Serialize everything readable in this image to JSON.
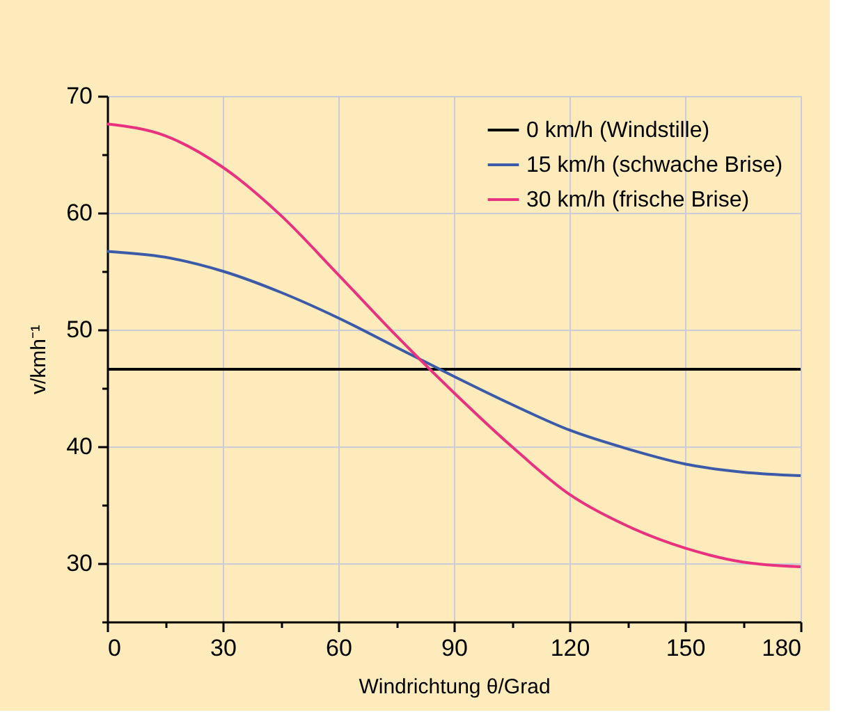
{
  "chart_data": {
    "type": "line",
    "xlabel": "Windrichtung θ/Grad",
    "ylabel": "v/kmh⁻¹",
    "xlim": [
      0,
      180
    ],
    "xticks": [
      0,
      {
        "value": 15,
        "label": null
      },
      30,
      {
        "value": 45,
        "label": null
      },
      60,
      {
        "value": 75,
        "label": null
      },
      90,
      {
        "value": 105,
        "label": null
      },
      120,
      {
        "value": 135,
        "label": null
      },
      150,
      {
        "value": 165,
        "label": null
      },
      180
    ],
    "ylim": [
      25,
      70
    ],
    "yticks": [
      {
        "value": 25,
        "label": null
      },
      30,
      {
        "value": 35,
        "label": null
      },
      40,
      {
        "value": 45,
        "label": null
      },
      50,
      {
        "value": 55,
        "label": null
      },
      60,
      {
        "value": 65,
        "label": null
      },
      70
    ],
    "grid": true,
    "legend": "top right",
    "line_style": "solid",
    "marker": "none",
    "series": [
      {
        "name": "0  km/h (Windstille)",
        "color": "#000000",
        "x": [
          0,
          180
        ],
        "values": [
          46.6,
          46.6
        ]
      },
      {
        "name": "15 km/h (schwache Brise)",
        "color": "#3b5aa8",
        "x": [
          0,
          15,
          30,
          45,
          60,
          75,
          90,
          105,
          120,
          135,
          150,
          165,
          180
        ],
        "values": [
          56.7,
          56.2,
          55.0,
          53.2,
          51.0,
          48.5,
          46.0,
          43.6,
          41.4,
          39.8,
          38.5,
          37.8,
          37.5
        ]
      },
      {
        "name": "30 km/h (frische Brise)",
        "color": "#e8327f",
        "x": [
          0,
          15,
          30,
          45,
          60,
          75,
          90,
          105,
          120,
          135,
          150,
          165,
          180
        ],
        "values": [
          67.6,
          66.6,
          63.9,
          59.8,
          54.7,
          49.5,
          44.6,
          40.0,
          35.9,
          33.2,
          31.3,
          30.1,
          29.7
        ]
      }
    ]
  }
}
